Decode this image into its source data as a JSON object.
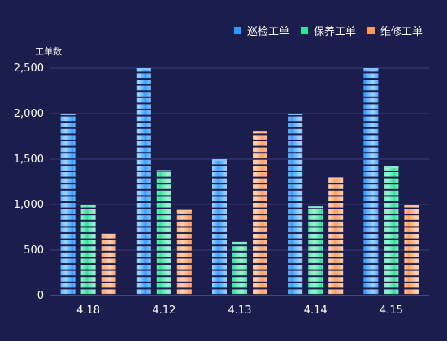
{
  "chart_data": {
    "type": "bar",
    "ylabel": "工单数",
    "xlabel": "",
    "categories": [
      "4.18",
      "4.12",
      "4.13",
      "4.14",
      "4.15"
    ],
    "ylim": [
      0,
      2500
    ],
    "yticks": [
      0,
      500,
      1000,
      1500,
      2000,
      2500
    ],
    "ytick_labels": [
      "0",
      "500",
      "1,000",
      "1,500",
      "2,000",
      "2,500"
    ],
    "grid": true,
    "legend_position": "top-right",
    "series": [
      {
        "name": "巡检工单",
        "color": "#2f9bff",
        "values": [
          2000,
          2500,
          1500,
          2000,
          2500
        ]
      },
      {
        "name": "保养工单",
        "color": "#2fe39b",
        "values": [
          1000,
          1380,
          590,
          980,
          1420
        ]
      },
      {
        "name": "维修工单",
        "color": "#ff9a5a",
        "values": [
          680,
          940,
          1810,
          1300,
          990
        ]
      }
    ]
  }
}
